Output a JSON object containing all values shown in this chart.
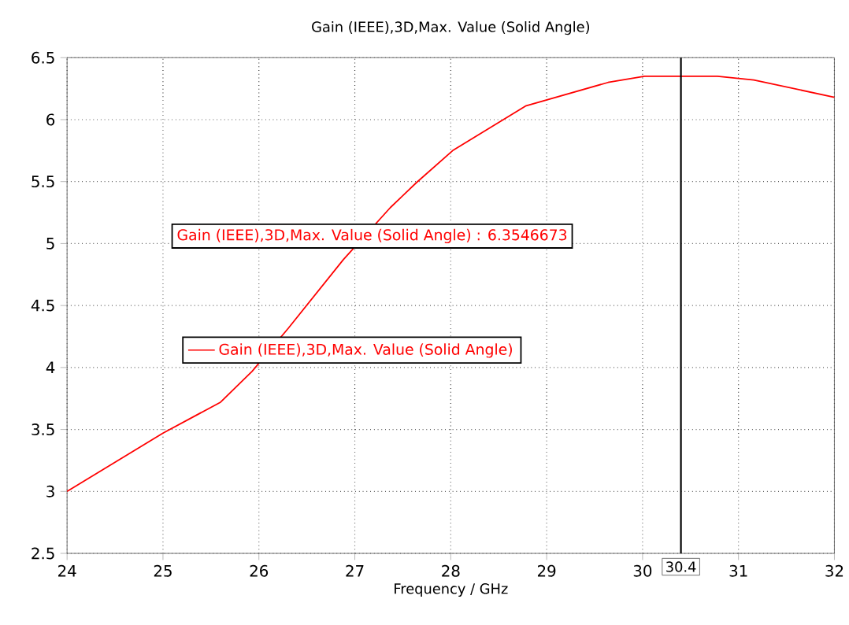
{
  "chart_data": {
    "type": "line",
    "title": "Gain (IEEE),3D,Max. Value (Solid Angle)",
    "xlabel": "Frequency / GHz",
    "series": [
      {
        "name": "Gain (IEEE),3D,Max. Value (Solid Angle)",
        "color": "#ff0000",
        "x": [
          24,
          25,
          25.6,
          25.93,
          26.31,
          26.88,
          27.37,
          27.64,
          28.02,
          28.78,
          29.64,
          30.02,
          30.78,
          31.16,
          32
        ],
        "values": [
          3.0,
          3.47,
          3.72,
          3.97,
          4.32,
          4.87,
          5.29,
          5.49,
          5.75,
          6.11,
          6.3,
          6.35,
          6.35,
          6.32,
          6.18
        ]
      }
    ],
    "xlim": [
      24,
      32
    ],
    "xticks": [
      24,
      25,
      26,
      27,
      28,
      29,
      30,
      31,
      32
    ],
    "ylim": [
      2.5,
      6.5
    ],
    "yticks": [
      2.5,
      3,
      3.5,
      4,
      4.5,
      5,
      5.5,
      6,
      6.5
    ],
    "ref_lines": [
      {
        "axis": "x",
        "value": 30.4,
        "label": "30.4",
        "color": "#000000"
      }
    ],
    "annotations": [
      "Gain (IEEE),3D,Max. Value (Solid Angle) : 6.3546673"
    ],
    "grid": true,
    "legend": "left",
    "marker": "none",
    "line_style": "solid"
  }
}
